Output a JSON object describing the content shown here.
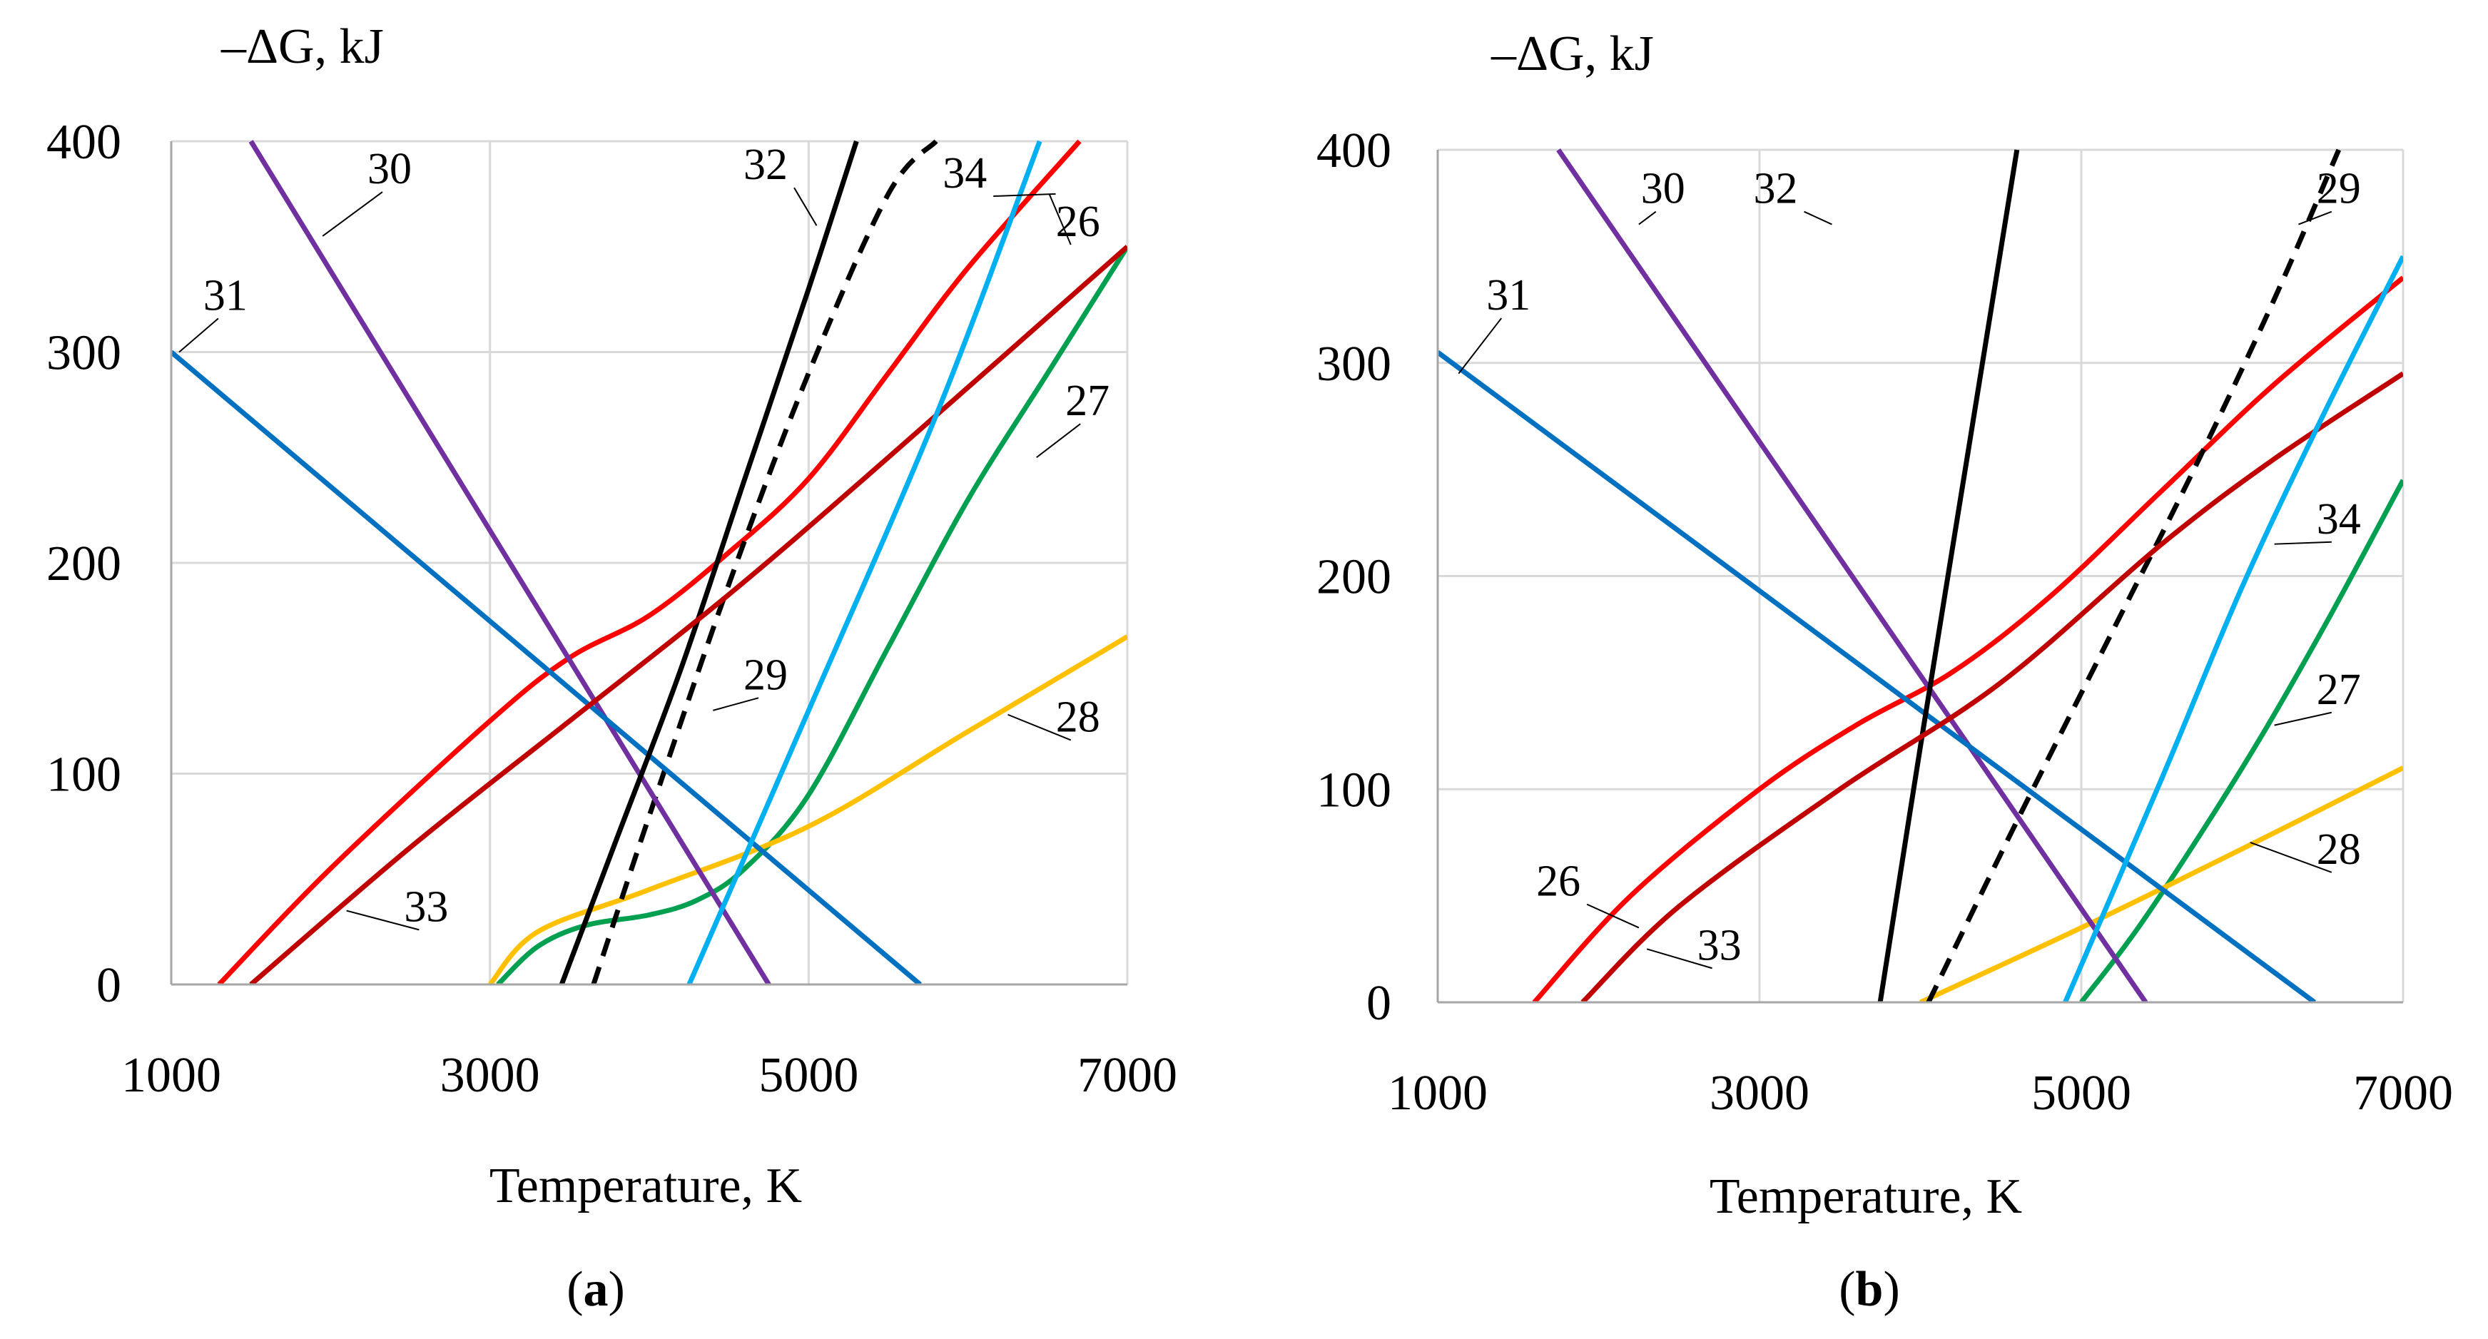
{
  "chart_data": [
    {
      "type": "line",
      "panel_label_open": "(",
      "panel_label_letter": "a",
      "panel_label_close": ")",
      "title": "",
      "xlabel": "Temperature, K",
      "ylabel": "–ΔG, kJ",
      "xlim": [
        1000,
        7000
      ],
      "ylim": [
        0,
        400
      ],
      "xticks": [
        1000,
        3000,
        5000,
        7000
      ],
      "yticks": [
        0,
        100,
        200,
        300,
        400
      ],
      "grid": true,
      "colors": {
        "grid": "#d9d9d9",
        "axis": "#a6a6a6"
      },
      "series": [
        {
          "name": "26",
          "color": "#ff0000",
          "dash": false,
          "x": [
            1300,
            2000,
            3000,
            3500,
            4000,
            4500,
            5000,
            5500,
            6000,
            6700
          ],
          "y": [
            0,
            55,
            125,
            155,
            175,
            205,
            240,
            290,
            340,
            400
          ],
          "label_pos": [
            6690,
            355
          ],
          "leader_to": [
            6510,
            375
          ]
        },
        {
          "name": "27",
          "color": "#00a050",
          "dash": false,
          "x": [
            3050,
            3300,
            3600,
            4000,
            4300,
            4600,
            5000,
            5500,
            6000,
            6500,
            7000
          ],
          "y": [
            0,
            18,
            28,
            33,
            40,
            55,
            90,
            160,
            230,
            290,
            350
          ],
          "label_pos": [
            6750,
            270
          ],
          "leader_to": [
            6430,
            250
          ]
        },
        {
          "name": "28",
          "color": "#ffc000",
          "dash": false,
          "x": [
            3000,
            3300,
            4000,
            5000,
            6000,
            7000
          ],
          "y": [
            0,
            25,
            45,
            75,
            120,
            165
          ],
          "label_pos": [
            6690,
            120
          ],
          "leader_to": [
            6250,
            128
          ]
        },
        {
          "name": "29",
          "color": "#000000",
          "dash": true,
          "x": [
            3650,
            4000,
            4500,
            5000,
            5500,
            5800
          ],
          "y": [
            0,
            80,
            190,
            290,
            375,
            400
          ],
          "label_pos": [
            4730,
            140
          ],
          "leader_to": [
            4400,
            130
          ]
        },
        {
          "name": "30",
          "color": "#7030a0",
          "dash": false,
          "x": [
            1500,
            4750
          ],
          "y": [
            400,
            0
          ],
          "label_pos": [
            2370,
            380
          ],
          "leader_to": [
            1950,
            355
          ]
        },
        {
          "name": "31",
          "color": "#0070c0",
          "dash": false,
          "x": [
            1000,
            5700
          ],
          "y": [
            300,
            0
          ],
          "label_pos": [
            1340,
            320
          ],
          "leader_to": [
            1050,
            300
          ]
        },
        {
          "name": "32",
          "color": "#000000",
          "dash": false,
          "x": [
            3450,
            3800,
            4200,
            4600,
            5000,
            5300
          ],
          "y": [
            0,
            70,
            150,
            240,
            330,
            400
          ],
          "label_pos": [
            4730,
            382
          ],
          "leader_to": [
            5050,
            360
          ]
        },
        {
          "name": "33",
          "color": "#c00000",
          "dash": false,
          "x": [
            1500,
            2500,
            3500,
            4500,
            5500,
            7000
          ],
          "y": [
            0,
            65,
            125,
            185,
            250,
            350
          ],
          "label_pos": [
            2600,
            30
          ],
          "leader_to": [
            2100,
            35
          ]
        },
        {
          "name": "34",
          "color": "#00b0f0",
          "dash": false,
          "x": [
            4250,
            5000,
            5800,
            6450
          ],
          "y": [
            0,
            130,
            270,
            400
          ],
          "label_pos": [
            5980,
            378
          ],
          "leader_to": [
            6550,
            375
          ]
        }
      ]
    },
    {
      "type": "line",
      "panel_label_open": "(",
      "panel_label_letter": "b",
      "panel_label_close": ")",
      "title": "",
      "xlabel": "Temperature, K",
      "ylabel": "–ΔG, kJ",
      "xlim": [
        1000,
        7000
      ],
      "ylim": [
        0,
        400
      ],
      "xticks": [
        1000,
        3000,
        5000,
        7000
      ],
      "yticks": [
        0,
        100,
        200,
        300,
        400
      ],
      "grid": true,
      "colors": {
        "grid": "#d9d9d9",
        "axis": "#a6a6a6"
      },
      "series": [
        {
          "name": "26",
          "color": "#ff0000",
          "dash": false,
          "x": [
            1600,
            2200,
            3000,
            3600,
            4200,
            4800,
            5500,
            6200,
            7000
          ],
          "y": [
            0,
            50,
            100,
            130,
            155,
            190,
            240,
            290,
            340
          ],
          "label_pos": [
            1750,
            50
          ],
          "leader_to": [
            2250,
            35
          ]
        },
        {
          "name": "27",
          "color": "#00a050",
          "dash": false,
          "x": [
            5000,
            5400,
            6000,
            6500,
            7000
          ],
          "y": [
            0,
            40,
            110,
            175,
            245
          ],
          "label_pos": [
            6600,
            140
          ],
          "leader_to": [
            6200,
            130
          ]
        },
        {
          "name": "28",
          "color": "#ffc000",
          "dash": false,
          "x": [
            4000,
            5000,
            6000,
            7000
          ],
          "y": [
            0,
            35,
            72,
            110
          ],
          "label_pos": [
            6600,
            65
          ],
          "leader_to": [
            6050,
            75
          ]
        },
        {
          "name": "29",
          "color": "#000000",
          "dash": true,
          "x": [
            4050,
            4600,
            5200,
            5700,
            6200,
            6600
          ],
          "y": [
            0,
            85,
            175,
            250,
            330,
            400
          ],
          "label_pos": [
            6600,
            375
          ],
          "leader_to": [
            6350,
            365
          ]
        },
        {
          "name": "30",
          "color": "#7030a0",
          "dash": false,
          "x": [
            1750,
            5400
          ],
          "y": [
            400,
            0
          ],
          "label_pos": [
            2400,
            375
          ],
          "leader_to": [
            2250,
            365
          ]
        },
        {
          "name": "31",
          "color": "#0070c0",
          "dash": false,
          "x": [
            1000,
            6450
          ],
          "y": [
            305,
            0
          ],
          "label_pos": [
            1440,
            325
          ],
          "leader_to": [
            1130,
            295
          ]
        },
        {
          "name": "32",
          "color": "#000000",
          "dash": false,
          "x": [
            3750,
            4000,
            4300,
            4600
          ],
          "y": [
            0,
            120,
            260,
            400
          ],
          "label_pos": [
            3100,
            375
          ],
          "leader_to": [
            3450,
            365
          ]
        },
        {
          "name": "33",
          "color": "#c00000",
          "dash": false,
          "x": [
            1900,
            2500,
            3500,
            4500,
            5500,
            6200,
            7000
          ],
          "y": [
            0,
            45,
            100,
            150,
            215,
            255,
            295
          ],
          "label_pos": [
            2750,
            20
          ],
          "leader_to": [
            2300,
            25
          ]
        },
        {
          "name": "34",
          "color": "#00b0f0",
          "dash": false,
          "x": [
            4900,
            5500,
            6000,
            6500,
            7000
          ],
          "y": [
            0,
            105,
            195,
            275,
            350
          ],
          "label_pos": [
            6600,
            220
          ],
          "leader_to": [
            6200,
            215
          ]
        }
      ]
    }
  ]
}
